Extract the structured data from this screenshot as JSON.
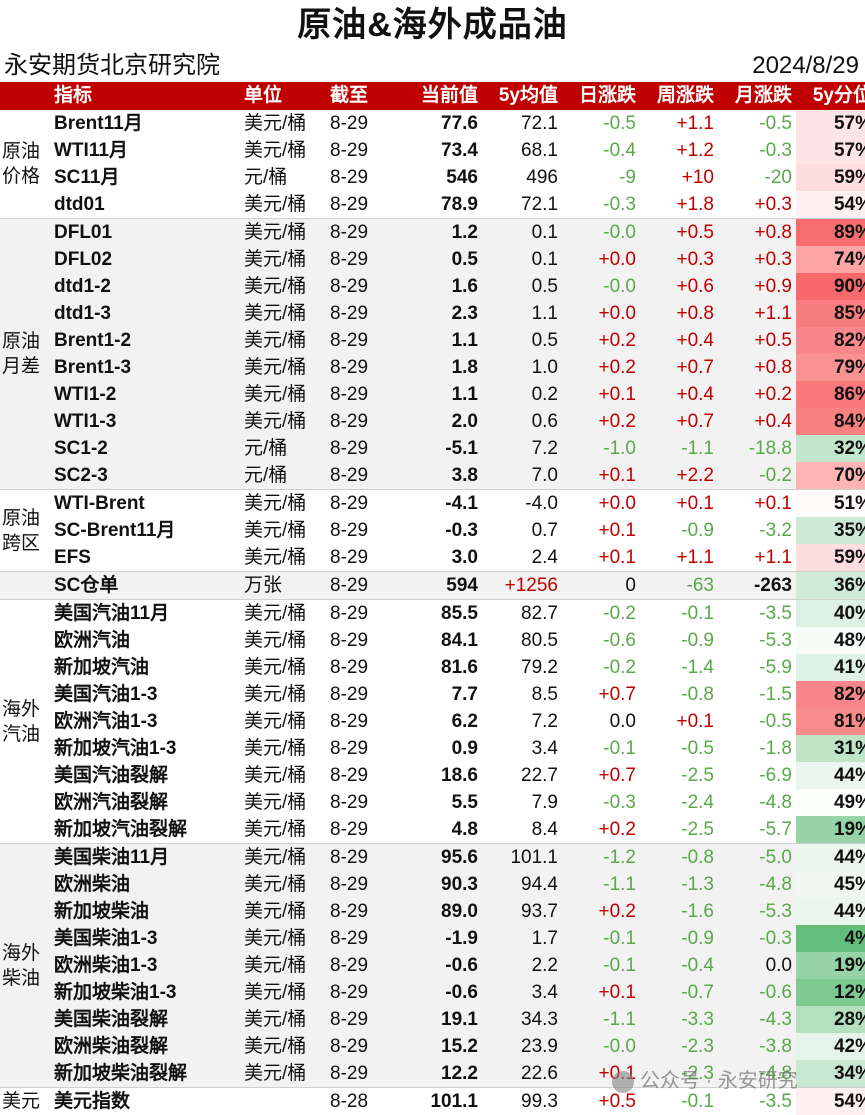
{
  "title": "原油&海外成品油",
  "org": "永安期货北京研究院",
  "date": "2024/8/29",
  "headers": {
    "name": "指标",
    "unit": "单位",
    "date": "截至",
    "current": "当前值",
    "avg": "5y均值",
    "day": "日涨跌",
    "week": "周涨跌",
    "month": "月涨跌",
    "pct": "5y分位"
  },
  "groups": [
    {
      "label": "原油\n价格",
      "shade": false,
      "rows": [
        {
          "name": "Brent11月",
          "unit": "美元/桶",
          "date": "8-29",
          "current": "77.6",
          "avg": "72.1",
          "day": "-0.5",
          "week": "+1.1",
          "month": "-0.5",
          "pct": "57%",
          "pct_value": 57
        },
        {
          "name": "WTI11月",
          "unit": "美元/桶",
          "date": "8-29",
          "current": "73.4",
          "avg": "68.1",
          "day": "-0.4",
          "week": "+1.2",
          "month": "-0.3",
          "pct": "57%",
          "pct_value": 57
        },
        {
          "name": "SC11月",
          "unit": "元/桶",
          "date": "8-29",
          "current": "546",
          "avg": "496",
          "day": "-9",
          "week": "+10",
          "month": "-20",
          "pct": "59%",
          "pct_value": 59
        },
        {
          "name": "dtd01",
          "unit": "美元/桶",
          "date": "8-29",
          "current": "78.9",
          "avg": "72.1",
          "day": "-0.3",
          "week": "+1.8",
          "month": "+0.3",
          "pct": "54%",
          "pct_value": 54
        }
      ]
    },
    {
      "label": "原油\n月差",
      "shade": true,
      "rows": [
        {
          "name": "DFL01",
          "unit": "美元/桶",
          "date": "8-29",
          "current": "1.2",
          "avg": "0.1",
          "day": "-0.0",
          "week": "+0.5",
          "month": "+0.8",
          "pct": "89%",
          "pct_value": 89
        },
        {
          "name": "DFL02",
          "unit": "美元/桶",
          "date": "8-29",
          "current": "0.5",
          "avg": "0.1",
          "day": "+0.0",
          "week": "+0.3",
          "month": "+0.3",
          "pct": "74%",
          "pct_value": 74
        },
        {
          "name": "dtd1-2",
          "unit": "美元/桶",
          "date": "8-29",
          "current": "1.6",
          "avg": "0.5",
          "day": "-0.0",
          "week": "+0.6",
          "month": "+0.9",
          "pct": "90%",
          "pct_value": 90
        },
        {
          "name": "dtd1-3",
          "unit": "美元/桶",
          "date": "8-29",
          "current": "2.3",
          "avg": "1.1",
          "day": "+0.0",
          "week": "+0.8",
          "month": "+1.1",
          "pct": "85%",
          "pct_value": 85
        },
        {
          "name": "Brent1-2",
          "unit": "美元/桶",
          "date": "8-29",
          "current": "1.1",
          "avg": "0.5",
          "day": "+0.2",
          "week": "+0.4",
          "month": "+0.5",
          "pct": "82%",
          "pct_value": 82
        },
        {
          "name": "Brent1-3",
          "unit": "美元/桶",
          "date": "8-29",
          "current": "1.8",
          "avg": "1.0",
          "day": "+0.2",
          "week": "+0.7",
          "month": "+0.8",
          "pct": "79%",
          "pct_value": 79
        },
        {
          "name": "WTI1-2",
          "unit": "美元/桶",
          "date": "8-29",
          "current": "1.1",
          "avg": "0.2",
          "day": "+0.1",
          "week": "+0.4",
          "month": "+0.2",
          "pct": "86%",
          "pct_value": 86
        },
        {
          "name": "WTI1-3",
          "unit": "美元/桶",
          "date": "8-29",
          "current": "2.0",
          "avg": "0.6",
          "day": "+0.2",
          "week": "+0.7",
          "month": "+0.4",
          "pct": "84%",
          "pct_value": 84
        },
        {
          "name": "SC1-2",
          "unit": "元/桶",
          "date": "8-29",
          "current": "-5.1",
          "avg": "7.2",
          "day": "-1.0",
          "week": "-1.1",
          "month": "-18.8",
          "pct": "32%",
          "pct_value": 32
        },
        {
          "name": "SC2-3",
          "unit": "元/桶",
          "date": "8-29",
          "current": "3.8",
          "avg": "7.0",
          "day": "+0.1",
          "week": "+2.2",
          "month": "-0.2",
          "pct": "70%",
          "pct_value": 70
        }
      ]
    },
    {
      "label": "原油\n跨区",
      "shade": false,
      "rows": [
        {
          "name": "WTI-Brent",
          "unit": "美元/桶",
          "date": "8-29",
          "current": "-4.1",
          "avg": "-4.0",
          "day": "+0.0",
          "week": "+0.1",
          "month": "+0.1",
          "pct": "51%",
          "pct_value": 51
        },
        {
          "name": "SC-Brent11月",
          "unit": "美元/桶",
          "date": "8-29",
          "current": "-0.3",
          "avg": "0.7",
          "day": "+0.1",
          "week": "-0.9",
          "month": "-3.2",
          "pct": "35%",
          "pct_value": 35
        },
        {
          "name": "EFS",
          "unit": "美元/桶",
          "date": "8-29",
          "current": "3.0",
          "avg": "2.4",
          "day": "+0.1",
          "week": "+1.1",
          "month": "+1.1",
          "pct": "59%",
          "pct_value": 59
        }
      ]
    },
    {
      "label": "",
      "shade": true,
      "rows": [
        {
          "name": "SC仓单",
          "unit": "万张",
          "date": "8-29",
          "current": "594",
          "avg": "+1256",
          "day": "0",
          "week": "-63",
          "month": "-263",
          "pct": "36%",
          "pct_value": 36
        }
      ]
    },
    {
      "label": "海外\n汽油",
      "shade": false,
      "rows": [
        {
          "name": "美国汽油11月",
          "unit": "美元/桶",
          "date": "8-29",
          "current": "85.5",
          "avg": "82.7",
          "day": "-0.2",
          "week": "-0.1",
          "month": "-3.5",
          "pct": "40%",
          "pct_value": 40
        },
        {
          "name": "欧洲汽油",
          "unit": "美元/桶",
          "date": "8-29",
          "current": "84.1",
          "avg": "80.5",
          "day": "-0.6",
          "week": "-0.9",
          "month": "-5.3",
          "pct": "48%",
          "pct_value": 48
        },
        {
          "name": "新加坡汽油",
          "unit": "美元/桶",
          "date": "8-29",
          "current": "81.6",
          "avg": "79.2",
          "day": "-0.2",
          "week": "-1.4",
          "month": "-5.9",
          "pct": "41%",
          "pct_value": 41
        },
        {
          "name": "美国汽油1-3",
          "unit": "美元/桶",
          "date": "8-29",
          "current": "7.7",
          "avg": "8.5",
          "day": "+0.7",
          "week": "-0.8",
          "month": "-1.5",
          "pct": "82%",
          "pct_value": 82
        },
        {
          "name": "欧洲汽油1-3",
          "unit": "美元/桶",
          "date": "8-29",
          "current": "6.2",
          "avg": "7.2",
          "day": "0.0",
          "week": "+0.1",
          "month": "-0.5",
          "pct": "81%",
          "pct_value": 81
        },
        {
          "name": "新加坡汽油1-3",
          "unit": "美元/桶",
          "date": "8-29",
          "current": "0.9",
          "avg": "3.4",
          "day": "-0.1",
          "week": "-0.5",
          "month": "-1.8",
          "pct": "31%",
          "pct_value": 31
        },
        {
          "name": "美国汽油裂解",
          "unit": "美元/桶",
          "date": "8-29",
          "current": "18.6",
          "avg": "22.7",
          "day": "+0.7",
          "week": "-2.5",
          "month": "-6.9",
          "pct": "44%",
          "pct_value": 44
        },
        {
          "name": "欧洲汽油裂解",
          "unit": "美元/桶",
          "date": "8-29",
          "current": "5.5",
          "avg": "7.9",
          "day": "-0.3",
          "week": "-2.4",
          "month": "-4.8",
          "pct": "49%",
          "pct_value": 49
        },
        {
          "name": "新加坡汽油裂解",
          "unit": "美元/桶",
          "date": "8-29",
          "current": "4.8",
          "avg": "8.4",
          "day": "+0.2",
          "week": "-2.5",
          "month": "-5.7",
          "pct": "19%",
          "pct_value": 19
        }
      ]
    },
    {
      "label": "海外\n柴油",
      "shade": true,
      "rows": [
        {
          "name": "美国柴油11月",
          "unit": "美元/桶",
          "date": "8-29",
          "current": "95.6",
          "avg": "101.1",
          "day": "-1.2",
          "week": "-0.8",
          "month": "-5.0",
          "pct": "44%",
          "pct_value": 44
        },
        {
          "name": "欧洲柴油",
          "unit": "美元/桶",
          "date": "8-29",
          "current": "90.3",
          "avg": "94.4",
          "day": "-1.1",
          "week": "-1.3",
          "month": "-4.8",
          "pct": "45%",
          "pct_value": 45
        },
        {
          "name": "新加坡柴油",
          "unit": "美元/桶",
          "date": "8-29",
          "current": "89.0",
          "avg": "93.7",
          "day": "+0.2",
          "week": "-1.6",
          "month": "-5.3",
          "pct": "44%",
          "pct_value": 44
        },
        {
          "name": "美国柴油1-3",
          "unit": "美元/桶",
          "date": "8-29",
          "current": "-1.9",
          "avg": "1.7",
          "day": "-0.1",
          "week": "-0.9",
          "month": "-0.3",
          "pct": "4%",
          "pct_value": 4
        },
        {
          "name": "欧洲柴油1-3",
          "unit": "美元/桶",
          "date": "8-29",
          "current": "-0.6",
          "avg": "2.2",
          "day": "-0.1",
          "week": "-0.4",
          "month": "0.0",
          "pct": "19%",
          "pct_value": 19
        },
        {
          "name": "新加坡柴油1-3",
          "unit": "美元/桶",
          "date": "8-29",
          "current": "-0.6",
          "avg": "3.4",
          "day": "+0.1",
          "week": "-0.7",
          "month": "-0.6",
          "pct": "12%",
          "pct_value": 12
        },
        {
          "name": "美国柴油裂解",
          "unit": "美元/桶",
          "date": "8-29",
          "current": "19.1",
          "avg": "34.3",
          "day": "-1.1",
          "week": "-3.3",
          "month": "-4.3",
          "pct": "28%",
          "pct_value": 28
        },
        {
          "name": "欧洲柴油裂解",
          "unit": "美元/桶",
          "date": "8-29",
          "current": "15.2",
          "avg": "23.9",
          "day": "-0.0",
          "week": "-2.3",
          "month": "-3.8",
          "pct": "42%",
          "pct_value": 42
        },
        {
          "name": "新加坡柴油裂解",
          "unit": "美元/桶",
          "date": "8-29",
          "current": "12.2",
          "avg": "22.6",
          "day": "+0.1",
          "week": "-2.3",
          "month": "-4.8",
          "pct": "34%",
          "pct_value": 34
        }
      ]
    },
    {
      "label": "美元",
      "shade": false,
      "rows": [
        {
          "name": "美元指数",
          "unit": "",
          "date": "8-28",
          "current": "101.1",
          "avg": "99.3",
          "day": "+0.5",
          "week": "-0.1",
          "month": "-3.5",
          "pct": "54%",
          "pct_value": 54
        }
      ]
    }
  ],
  "colors": {
    "header_bg": "#c00000",
    "up": "#c00000",
    "down": "#5aa84a",
    "shade": "#f2f2f2",
    "heat_high": "#f8696b",
    "heat_mid": "#ffffff",
    "heat_low": "#63be7b"
  },
  "watermark": "公众号 · 永安研究"
}
